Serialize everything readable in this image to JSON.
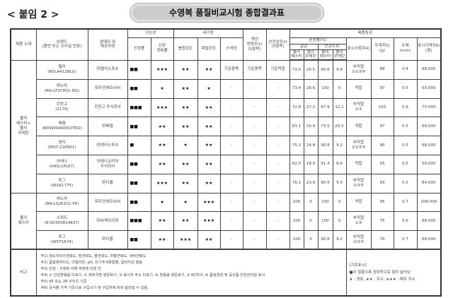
{
  "attachment_label": "< 붙임 2 >",
  "title": "수영복 품질비교시험 종합결과표",
  "headers": {
    "material": "제품 소재",
    "brand": "브랜드\n(품번 또는 스타일 번호)",
    "seller": "판매자 및\n제조자명",
    "functionality": "기능성",
    "elongation": "신장률",
    "recovery": "신장\n회복률",
    "durability": "내구성",
    "seam": "봉합강도",
    "burst": "파열강도",
    "snag": "스낵성",
    "color_change": "색상\n변화주1)\n(5항목)",
    "safety": "안전성주2)\n(5항목)",
    "features": "제품특징",
    "blend": "혼용률(%)",
    "outer": "겉감",
    "lining": "안감주3)",
    "polyester": "폴리\n에스터",
    "polyurethane": "폴리\n우레탄",
    "labeling": "표시사항주4)",
    "weight": "무게주5)\n(g)",
    "thickness": "두께\n(mm)",
    "price": "표시가격주6)\n(원)"
  },
  "groups": [
    {
      "material": "폴리\n에스터+\n폴리\n우레탄",
      "rows": [
        {
          "brand": "헬리",
          "code": "(NSLA412BLU)",
          "seller": "㈜헬리스포츠",
          "elong": "■■",
          "recov": "★★★",
          "seam": "★★",
          "burst": "★★",
          "snag": "기준충족",
          "color": "기준충족",
          "safety": "기준적합",
          "o_pe": "73.5",
          "o_pu": "26.5",
          "l_pe": "90.6",
          "l_pu": "9.4",
          "label": "부적합",
          "label_notes": "①②③⑥",
          "weight": "88",
          "thick": "0.4",
          "price": "98,000"
        },
        {
          "brand": "레노마",
          "code": "(RN-LF2C802-DG)",
          "seller": "㈜우인에프씨씨",
          "elong": "■■",
          "recov": "★",
          "seam": "★★",
          "burst": "★",
          "snag": "-",
          "color": "-",
          "safety": "-",
          "o_pe": "73.4",
          "o_pu": "26.6",
          "l_pe": "100",
          "l_pu": "0",
          "label": "적합",
          "label_notes": "",
          "weight": "97",
          "thick": "0.5",
          "price": "55,000"
        },
        {
          "brand": "르망고",
          "code": "(2176)",
          "seller": "르망고 주식회사",
          "elong": "■■■",
          "recov": "★★★",
          "seam": "★★",
          "burst": "★★",
          "snag": "-",
          "color": "-",
          "safety": "-",
          "o_pe": "72.8",
          "o_pu": "27.2",
          "l_pe": "87.9",
          "l_pu": "12.1",
          "label": "부적합",
          "label_notes": "①③",
          "weight": "103",
          "thick": "0.6",
          "price": "75,000"
        },
        {
          "brand": "배럴",
          "code": "(B4SWSWS002TRQ)",
          "seller": "㈜배럴",
          "elong": "■■",
          "recov": "★★",
          "seam": "★★",
          "burst": "★★",
          "snag": "-",
          "color": "-",
          "safety": "-",
          "o_pe": "83.1",
          "o_pu": "16.9",
          "l_pe": "73.5",
          "l_pu": "26.5",
          "label": "적합",
          "label_notes": "",
          "weight": "97",
          "thick": "0.5",
          "price": "69,000"
        },
        {
          "brand": "센티",
          "code": "(WST-218901)",
          "seller": "㈜센티스포츠",
          "elong": "■",
          "recov": "★★",
          "seam": "★",
          "burst": "★★",
          "snag": "-",
          "color": "-",
          "safety": "-",
          "o_pe": "75.2",
          "o_pu": "24.8",
          "l_pe": "90.8",
          "l_pu": "9.2",
          "label": "부적합",
          "label_notes": "①②③⑤",
          "weight": "90",
          "thick": "0.5",
          "price": "68,000"
        },
        {
          "brand": "아레나",
          "code": "(A4SL1PL67)",
          "seller": "아레나코리아\n주식회사",
          "elong": "■■",
          "recov": "★★",
          "seam": "★★",
          "burst": "★★",
          "snag": "-",
          "color": "-",
          "safety": "-",
          "o_pe": "82.0",
          "o_pu": "18.0",
          "l_pe": "91.4",
          "l_pu": "8.6",
          "label": "적합",
          "label_notes": "",
          "weight": "93",
          "thick": "0.5",
          "price": "59,000"
        },
        {
          "brand": "후그",
          "code": "(WSA1775)",
          "seller": "㈜디몰",
          "elong": "■■",
          "recov": "★★★",
          "seam": "★★",
          "burst": "★★",
          "snag": "-",
          "color": "-",
          "safety": "-",
          "o_pe": "76.1",
          "o_pu": "23.9",
          "l_pe": "90.5",
          "l_pu": "9.5",
          "label": "부적합",
          "label_notes": "②③⑤",
          "weight": "93",
          "thick": "0.5",
          "price": "84,000"
        }
      ]
    },
    {
      "material": "폴리\n에스터",
      "rows": [
        {
          "brand": "레노마",
          "code": "(RN-LS2E201-PK)",
          "seller": "㈜우인에프씨씨",
          "elong": "■■",
          "recov": "★",
          "seam": "★",
          "burst": "★★★",
          "snag": "-",
          "color": "-",
          "safety": "-",
          "o_pe": "100",
          "o_pu": "0",
          "l_pe": "100",
          "l_pu": "0",
          "label": "적합",
          "label_notes": "",
          "weight": "95",
          "thick": "0.7",
          "price": "108,000"
        },
        {
          "brand": "스피도",
          "code": "(8-00305814837)",
          "seller": "㈜씨케이지피",
          "elong": "■■■",
          "recov": "★★",
          "seam": "★★",
          "burst": "★★★",
          "snag": "-",
          "color": "-",
          "safety": "-",
          "o_pe": "100",
          "o_pu": "0",
          "l_pe": "100",
          "l_pu": "0",
          "label": "부적합",
          "label_notes": "①③",
          "weight": "75",
          "thick": "0.6",
          "price": "66,000"
        },
        {
          "brand": "후그",
          "code": "(WST1674)",
          "seller": "㈜디몰",
          "elong": "■■",
          "recov": "★★",
          "seam": "★★★",
          "burst": "★★",
          "snag": "-",
          "color": "-",
          "safety": "-",
          "o_pe": "100",
          "o_pu": "0",
          "l_pe": "90.8",
          "l_pu": "9.2",
          "label": "부적합",
          "label_notes": "②③⑤",
          "weight": "76",
          "thick": "0.7",
          "price": "68,000"
        }
      ]
    }
  ],
  "remarks": {
    "label": "비고",
    "notes": [
      "주1) 염소처리수견뢰도, 땀견뢰도, 물견뢰도, 마찰견뢰도, 세탁견뢰도",
      "주2) 폼알데하이드, 아릴아민, pH, 유기주석화합물, 알러지성 염료",
      "주3) 안감 : 수영복 아랫 부분에 덧댄 천",
      "주4) ① 안감혼용률 미표기, ② 제조국명 영문표기, ③ 표시자 주소 미표기, ④ 혼용률 영문표기, ⑤ KC마크, ⑥ 품질경영 및 공산품 안전관리법 표시",
      "주5) 85 또는 28 사이즈 기준",
      "주6) 공식몰 가격 기준으로 구입시기 및 구입처에 따라 달라질 수 있음."
    ],
    "legend_title": "[기호표시]",
    "legend_boxes": "■이 많을수록 상대적으로 많이 늘어남",
    "legend_stars": "★ : 양호, ★★ : 우수, ★★★ : 매우 우수"
  }
}
